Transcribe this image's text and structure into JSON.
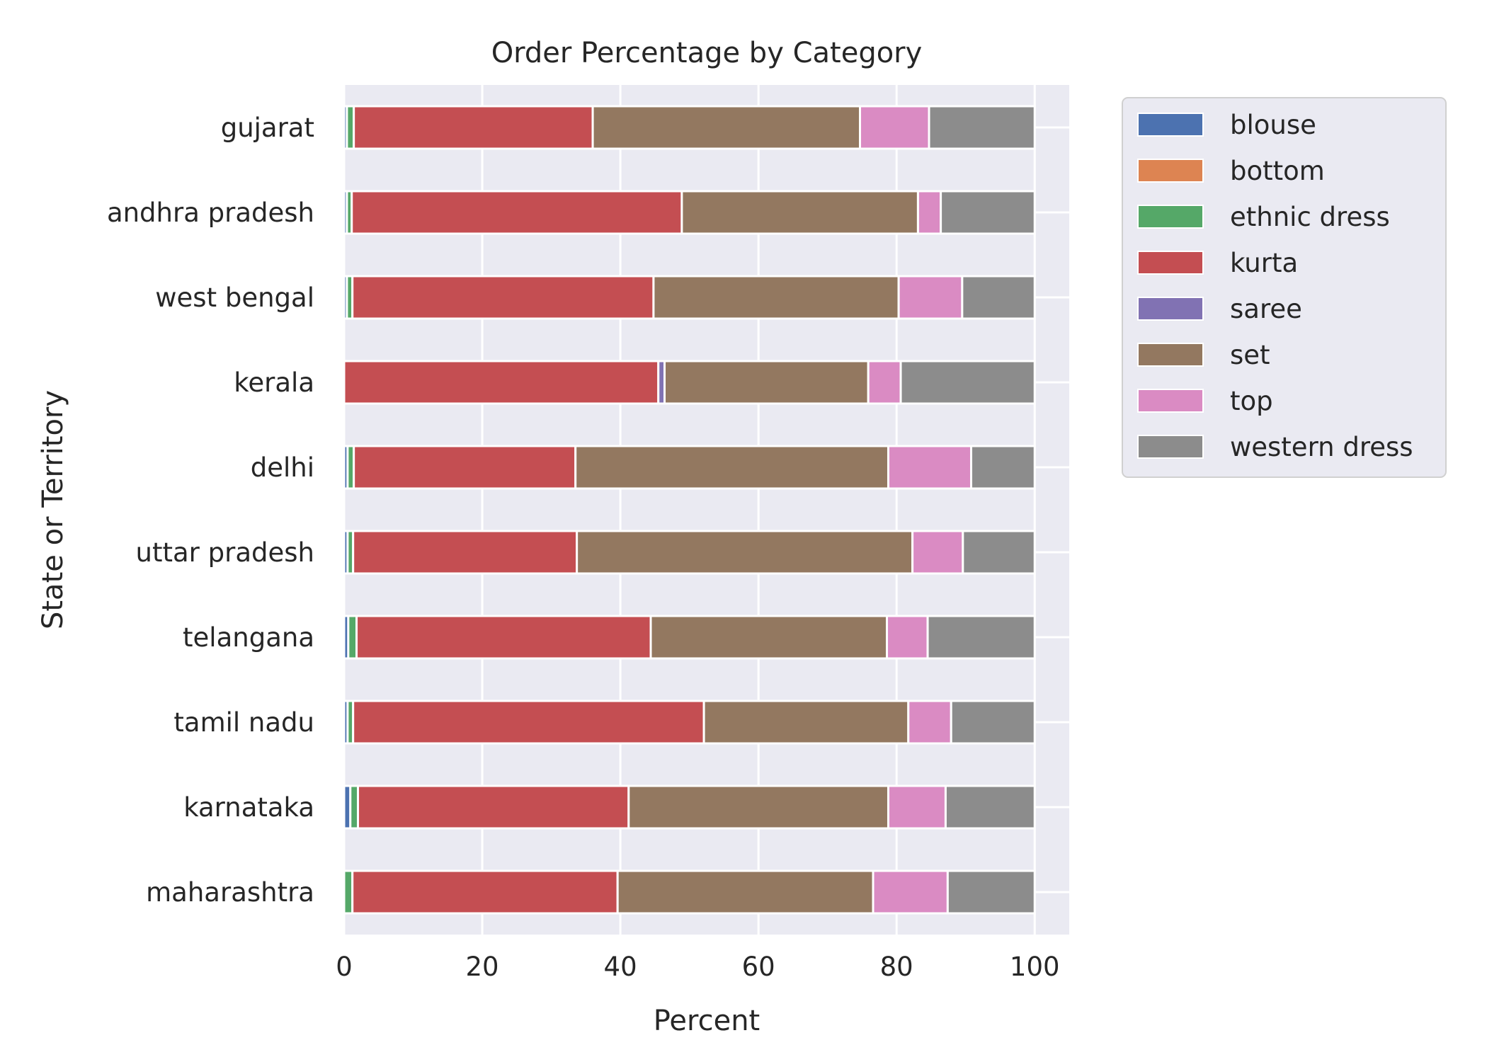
{
  "chart_data": {
    "type": "bar",
    "orientation": "horizontal",
    "stacked": true,
    "title": "Order Percentage by Category",
    "xlabel": "Percent",
    "ylabel": "State or Territory",
    "xlim": [
      0,
      105
    ],
    "xticks": [
      0,
      20,
      40,
      60,
      80,
      100
    ],
    "grid": true,
    "legend_position": "outside-right",
    "categories": [
      "gujarat",
      "andhra pradesh",
      "west bengal",
      "kerala",
      "delhi",
      "uttar pradesh",
      "telangana",
      "tamil nadu",
      "karnataka",
      "maharashtra"
    ],
    "series": [
      {
        "name": "blouse",
        "color": "#4c72b0",
        "values": [
          0.4,
          0.4,
          0.4,
          0.0,
          0.5,
          0.5,
          0.6,
          0.5,
          0.9,
          0.0
        ]
      },
      {
        "name": "bottom",
        "color": "#dd8452",
        "values": [
          0.0,
          0.0,
          0.0,
          0.0,
          0.0,
          0.0,
          0.0,
          0.0,
          0.0,
          0.0
        ]
      },
      {
        "name": "ethnic dress",
        "color": "#55a868",
        "values": [
          1.0,
          0.7,
          0.8,
          0.0,
          0.9,
          0.8,
          1.2,
          0.8,
          1.1,
          1.2
        ]
      },
      {
        "name": "kurta",
        "color": "#c44e52",
        "values": [
          34.6,
          47.8,
          43.6,
          45.5,
          32.1,
          32.4,
          42.6,
          50.8,
          39.2,
          38.4
        ]
      },
      {
        "name": "saree",
        "color": "#8172b3",
        "values": [
          0.0,
          0.0,
          0.0,
          0.9,
          0.0,
          0.0,
          0.0,
          0.0,
          0.0,
          0.0
        ]
      },
      {
        "name": "set",
        "color": "#937860",
        "values": [
          38.7,
          34.2,
          35.5,
          29.5,
          45.3,
          48.6,
          34.2,
          29.6,
          37.6,
          37.0
        ]
      },
      {
        "name": "top",
        "color": "#da8bc3",
        "values": [
          10.0,
          3.3,
          9.2,
          4.7,
          12.0,
          7.3,
          5.9,
          6.2,
          8.3,
          10.8
        ]
      },
      {
        "name": "western dress",
        "color": "#8c8c8c",
        "values": [
          15.3,
          13.6,
          10.5,
          19.4,
          9.2,
          10.4,
          15.5,
          12.1,
          12.9,
          12.6
        ]
      }
    ]
  }
}
